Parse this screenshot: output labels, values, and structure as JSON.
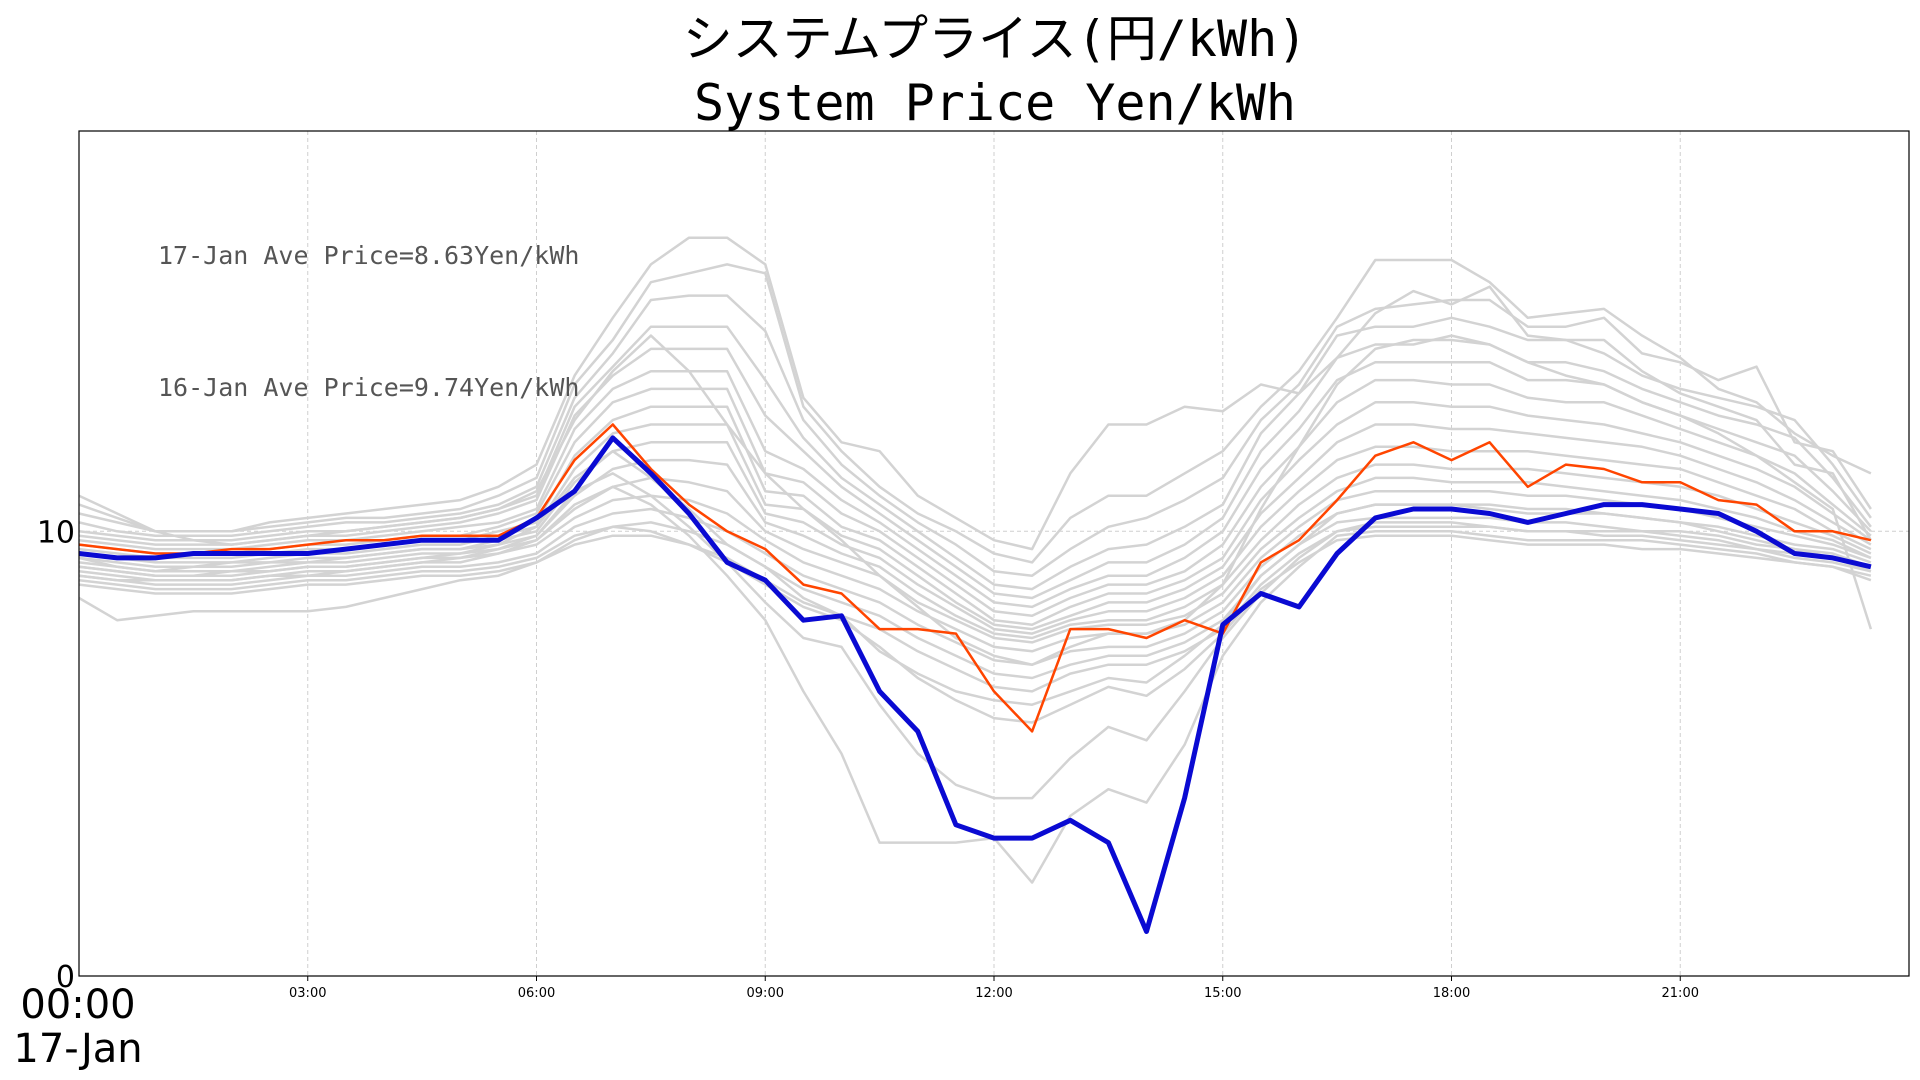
{
  "chart_data": {
    "type": "line",
    "title": "システムプライス(円/kWh)",
    "subtitle": "System Price Yen/kWh",
    "x": [
      "00:00",
      "00:30",
      "01:00",
      "01:30",
      "02:00",
      "02:30",
      "03:00",
      "03:30",
      "04:00",
      "04:30",
      "05:00",
      "05:30",
      "06:00",
      "06:30",
      "07:00",
      "07:30",
      "08:00",
      "08:30",
      "09:00",
      "09:30",
      "10:00",
      "10:30",
      "11:00",
      "11:30",
      "12:00",
      "12:30",
      "13:00",
      "13:30",
      "14:00",
      "14:30",
      "15:00",
      "15:30",
      "16:00",
      "16:30",
      "17:00",
      "17:30",
      "18:00",
      "18:30",
      "19:00",
      "19:30",
      "20:00",
      "20:30",
      "21:00",
      "21:30",
      "22:00",
      "22:30",
      "23:00",
      "23:30"
    ],
    "x_tick_labels": [
      "03:00",
      "06:00",
      "09:00",
      "12:00",
      "15:00",
      "18:00",
      "21:00"
    ],
    "x_first_label": "00:00",
    "x_date_label": "17-Jan",
    "y_tick_labels": [
      "0",
      "10"
    ],
    "ylim": [
      0,
      19
    ],
    "grid": true,
    "annotations": [
      "17-Jan Ave Price=8.63Yen/kWh",
      "16-Jan Ave Price=9.74Yen/kWh"
    ],
    "series": [
      {
        "values": [
          9.5,
          9.4,
          9.4,
          9.5,
          9.5,
          9.5,
          9.5,
          9.6,
          9.7,
          9.8,
          9.8,
          9.8,
          10.3,
          10.9,
          12.1,
          11.3,
          10.4,
          9.3,
          8.9,
          8.0,
          8.1,
          6.4,
          5.5,
          3.4,
          3.1,
          3.1,
          3.5,
          3.0,
          1.0,
          4.0,
          7.9,
          8.6,
          8.3,
          9.5,
          10.3,
          10.5,
          10.5,
          10.4,
          10.2,
          10.4,
          10.6,
          10.6,
          10.5,
          10.4,
          10.0,
          9.5,
          9.4,
          9.2
        ],
        "color": "#0a0ad2",
        "width": 5
      },
      {
        "values": [
          9.7,
          9.6,
          9.5,
          9.5,
          9.6,
          9.6,
          9.7,
          9.8,
          9.8,
          9.9,
          9.9,
          9.9,
          10.3,
          11.6,
          12.4,
          11.4,
          10.6,
          10.0,
          9.6,
          8.8,
          8.6,
          7.8,
          7.8,
          7.7,
          6.4,
          5.5,
          7.8,
          7.8,
          7.6,
          8.0,
          7.7,
          9.3,
          9.8,
          10.7,
          11.7,
          12.0,
          11.6,
          12.0,
          11.0,
          11.5,
          11.4,
          11.1,
          11.1,
          10.7,
          10.6,
          10.0,
          10.0,
          9.8
        ],
        "color": "#ff4500",
        "width": 2.5
      }
    ],
    "background_series_color": "#d3d3d3",
    "background_series": [
      [
        10.6,
        10.3,
        10.0,
        10.0,
        10.0,
        10.2,
        10.3,
        10.4,
        10.5,
        10.6,
        10.7,
        11.0,
        11.5,
        13.5,
        14.8,
        16.0,
        16.6,
        16.6,
        16.0,
        13.0,
        12.0,
        11.8,
        10.8,
        10.3,
        9.8,
        9.6,
        11.3,
        12.4,
        12.4,
        12.8,
        12.7,
        13.3,
        13.1,
        13.9,
        14.9,
        15.4,
        15.1,
        15.5,
        14.4,
        14.3,
        14.3,
        13.6,
        13.1,
        12.8,
        12.5,
        11.5,
        11.3,
        9.8
      ],
      [
        10.4,
        10.2,
        10.0,
        10.0,
        10.0,
        10.1,
        10.2,
        10.3,
        10.3,
        10.4,
        10.5,
        10.8,
        11.2,
        13.3,
        14.3,
        15.6,
        15.8,
        16.0,
        15.8,
        12.8,
        11.8,
        11.0,
        10.4,
        10.0,
        9.5,
        9.3,
        10.3,
        10.8,
        10.8,
        11.3,
        11.8,
        12.8,
        13.6,
        14.8,
        16.1,
        16.1,
        16.1,
        15.6,
        14.8,
        14.9,
        15.0,
        14.4,
        13.9,
        13.2,
        12.9,
        12.2,
        11.7,
        11.3
      ],
      [
        10.2,
        10.0,
        9.9,
        9.9,
        9.9,
        10.0,
        10.1,
        10.2,
        10.2,
        10.3,
        10.4,
        10.6,
        11.0,
        13.0,
        14.0,
        15.2,
        15.3,
        15.3,
        14.5,
        12.5,
        11.5,
        10.8,
        10.2,
        9.7,
        9.1,
        9.0,
        9.6,
        10.1,
        10.3,
        10.7,
        11.2,
        12.5,
        13.3,
        14.6,
        15.0,
        15.1,
        15.2,
        15.2,
        14.6,
        14.6,
        14.8,
        14.0,
        13.8,
        13.4,
        13.7,
        12.0,
        11.8,
        10.5
      ],
      [
        10.0,
        9.9,
        9.8,
        9.8,
        9.8,
        9.9,
        10.0,
        10.0,
        10.1,
        10.2,
        10.3,
        10.5,
        10.8,
        12.8,
        13.7,
        14.6,
        14.6,
        14.6,
        13.4,
        12.1,
        11.2,
        10.6,
        10.0,
        9.4,
        8.8,
        8.7,
        9.2,
        9.6,
        9.7,
        10.1,
        10.6,
        12.2,
        13.1,
        14.4,
        14.6,
        14.6,
        14.8,
        14.6,
        14.3,
        14.3,
        14.0,
        13.5,
        13.2,
        13.0,
        12.8,
        12.5,
        11.5,
        10.3
      ],
      [
        9.9,
        9.8,
        9.7,
        9.7,
        9.7,
        9.8,
        9.9,
        9.9,
        10.0,
        10.1,
        10.2,
        10.4,
        10.7,
        12.6,
        13.5,
        14.1,
        14.1,
        14.1,
        12.6,
        11.8,
        11.0,
        10.4,
        9.8,
        9.2,
        8.6,
        8.5,
        8.9,
        9.3,
        9.3,
        9.7,
        10.3,
        11.8,
        12.7,
        13.9,
        14.2,
        14.2,
        14.4,
        14.2,
        13.8,
        13.8,
        13.6,
        13.2,
        12.9,
        12.6,
        12.4,
        12.1,
        11.2,
        10.1
      ],
      [
        9.8,
        9.7,
        9.6,
        9.6,
        9.6,
        9.7,
        9.8,
        9.8,
        9.9,
        10.0,
        10.1,
        10.2,
        10.5,
        12.3,
        13.2,
        13.6,
        13.6,
        13.6,
        11.8,
        11.4,
        10.7,
        10.2,
        9.6,
        9.0,
        8.4,
        8.3,
        8.7,
        9.0,
        9.0,
        9.4,
        10.0,
        11.4,
        12.3,
        13.4,
        13.8,
        13.8,
        13.8,
        13.8,
        13.4,
        13.4,
        13.3,
        12.9,
        12.6,
        12.3,
        12.0,
        11.7,
        10.9,
        10.0
      ],
      [
        9.7,
        9.6,
        9.5,
        9.5,
        9.5,
        9.6,
        9.7,
        9.7,
        9.8,
        9.9,
        9.9,
        10.1,
        10.4,
        12.0,
        12.9,
        13.2,
        13.2,
        13.2,
        11.3,
        11.1,
        10.4,
        10.0,
        9.4,
        8.8,
        8.2,
        8.1,
        8.5,
        8.8,
        8.8,
        9.1,
        9.7,
        11.0,
        11.9,
        12.9,
        13.4,
        13.4,
        13.3,
        13.3,
        13.0,
        12.9,
        12.9,
        12.6,
        12.3,
        12.0,
        11.7,
        11.3,
        10.6,
        9.9
      ],
      [
        9.6,
        9.5,
        9.4,
        9.4,
        9.4,
        9.5,
        9.6,
        9.6,
        9.7,
        9.8,
        9.8,
        10.0,
        10.2,
        11.7,
        12.5,
        12.8,
        12.8,
        12.8,
        10.9,
        10.8,
        10.1,
        9.8,
        9.2,
        8.6,
        8.0,
        7.9,
        8.3,
        8.6,
        8.6,
        8.9,
        9.4,
        10.7,
        11.6,
        12.4,
        12.9,
        12.9,
        12.8,
        12.8,
        12.6,
        12.5,
        12.4,
        12.2,
        12.0,
        11.7,
        11.4,
        11.0,
        10.4,
        9.8
      ],
      [
        9.5,
        9.4,
        9.3,
        9.3,
        9.3,
        9.4,
        9.5,
        9.5,
        9.6,
        9.7,
        9.7,
        9.9,
        10.1,
        11.4,
        12.2,
        12.4,
        12.4,
        12.4,
        10.6,
        10.5,
        9.9,
        9.6,
        9.0,
        8.4,
        7.9,
        7.8,
        8.1,
        8.4,
        8.4,
        8.7,
        9.2,
        10.4,
        11.2,
        12.0,
        12.4,
        12.4,
        12.3,
        12.3,
        12.2,
        12.1,
        12.0,
        11.9,
        11.7,
        11.4,
        11.1,
        10.7,
        10.2,
        9.7
      ],
      [
        9.4,
        9.3,
        9.2,
        9.2,
        9.2,
        9.3,
        9.4,
        9.4,
        9.5,
        9.6,
        9.6,
        9.8,
        10.0,
        11.1,
        11.8,
        12.0,
        12.0,
        12.0,
        10.4,
        10.2,
        9.7,
        9.4,
        8.8,
        8.3,
        7.8,
        7.7,
        8.0,
        8.2,
        8.2,
        8.5,
        9.0,
        10.1,
        10.9,
        11.6,
        11.9,
        11.9,
        11.8,
        11.8,
        11.8,
        11.7,
        11.6,
        11.5,
        11.4,
        11.1,
        10.8,
        10.5,
        10.0,
        9.6
      ],
      [
        9.3,
        9.2,
        9.1,
        9.1,
        9.1,
        9.2,
        9.3,
        9.3,
        9.4,
        9.5,
        9.5,
        9.7,
        9.9,
        10.8,
        11.4,
        11.6,
        11.6,
        11.5,
        10.2,
        9.9,
        9.5,
        9.2,
        8.6,
        8.1,
        7.7,
        7.6,
        7.9,
        8.0,
        8.0,
        8.3,
        8.8,
        9.8,
        10.6,
        11.2,
        11.5,
        11.5,
        11.4,
        11.4,
        11.4,
        11.3,
        11.2,
        11.1,
        11.0,
        10.8,
        10.5,
        10.2,
        9.9,
        9.5
      ],
      [
        9.2,
        9.1,
        9.0,
        9.0,
        9.0,
        9.1,
        9.2,
        9.2,
        9.3,
        9.4,
        9.4,
        9.6,
        9.8,
        10.5,
        11.0,
        11.2,
        11.1,
        10.9,
        10.0,
        9.6,
        9.3,
        9.0,
        8.4,
        8.0,
        7.6,
        7.5,
        7.8,
        7.9,
        7.9,
        8.1,
        8.6,
        9.6,
        10.3,
        10.9,
        11.2,
        11.2,
        11.1,
        11.1,
        11.1,
        11.0,
        10.9,
        10.8,
        10.7,
        10.5,
        10.3,
        10.0,
        9.8,
        9.4
      ],
      [
        9.1,
        9.0,
        8.9,
        8.9,
        8.9,
        9.0,
        9.1,
        9.1,
        9.2,
        9.3,
        9.3,
        9.5,
        9.7,
        10.3,
        10.7,
        10.8,
        10.7,
        10.4,
        9.8,
        9.3,
        9.0,
        8.7,
        8.2,
        7.8,
        7.4,
        7.3,
        7.6,
        7.7,
        7.7,
        7.9,
        8.4,
        9.4,
        10.1,
        10.7,
        10.9,
        10.9,
        10.9,
        10.9,
        10.8,
        10.8,
        10.7,
        10.6,
        10.5,
        10.3,
        10.1,
        9.9,
        9.7,
        9.4
      ],
      [
        9.0,
        8.9,
        8.8,
        8.8,
        8.8,
        8.9,
        9.0,
        9.0,
        9.1,
        9.2,
        9.2,
        9.3,
        9.5,
        10.1,
        10.4,
        10.5,
        10.3,
        10.0,
        9.5,
        9.0,
        8.7,
        8.4,
        7.9,
        7.5,
        7.1,
        7.0,
        7.3,
        7.4,
        7.4,
        7.7,
        8.2,
        9.2,
        9.9,
        10.4,
        10.6,
        10.6,
        10.6,
        10.6,
        10.5,
        10.5,
        10.4,
        10.3,
        10.2,
        10.1,
        9.9,
        9.7,
        9.6,
        9.3
      ],
      [
        8.9,
        8.8,
        8.7,
        8.7,
        8.7,
        8.8,
        8.9,
        8.9,
        9.0,
        9.1,
        9.1,
        9.2,
        9.4,
        9.9,
        10.1,
        10.2,
        10.0,
        9.7,
        9.2,
        8.7,
        8.4,
        8.1,
        7.6,
        7.2,
        6.8,
        6.7,
        7.0,
        7.2,
        7.2,
        7.5,
        8.0,
        9.0,
        9.7,
        10.2,
        10.3,
        10.3,
        10.3,
        10.3,
        10.2,
        10.2,
        10.1,
        10.0,
        10.0,
        9.9,
        9.7,
        9.6,
        9.5,
        9.2
      ],
      [
        8.8,
        8.7,
        8.6,
        8.6,
        8.6,
        8.7,
        8.8,
        8.8,
        8.9,
        9.0,
        9.0,
        9.1,
        9.3,
        9.7,
        9.9,
        9.9,
        9.7,
        9.4,
        8.9,
        8.4,
        8.1,
        7.8,
        7.3,
        6.9,
        6.5,
        6.4,
        6.8,
        7.0,
        7.0,
        7.3,
        7.8,
        8.8,
        9.5,
        10.0,
        10.1,
        10.1,
        10.1,
        10.1,
        10.0,
        10.0,
        9.9,
        9.9,
        9.8,
        9.7,
        9.6,
        9.5,
        9.4,
        9.1
      ],
      [
        9.4,
        9.2,
        9.1,
        9.2,
        9.3,
        9.3,
        9.3,
        9.4,
        9.5,
        9.6,
        9.6,
        9.7,
        10.1,
        11.2,
        11.8,
        11.2,
        10.5,
        9.7,
        9.2,
        8.5,
        8.1,
        7.3,
        6.8,
        6.4,
        6.2,
        6.1,
        6.4,
        6.7,
        6.6,
        7.2,
        7.9,
        9.0,
        9.7,
        10.4,
        10.6,
        10.6,
        10.6,
        10.5,
        10.4,
        10.4,
        10.4,
        10.3,
        10.2,
        10.0,
        9.8,
        9.6,
        9.4,
        9.2
      ],
      [
        9.2,
        9.1,
        9.0,
        9.0,
        9.1,
        9.1,
        9.2,
        9.2,
        9.3,
        9.4,
        9.5,
        9.6,
        9.9,
        10.9,
        11.3,
        10.8,
        10.1,
        9.3,
        8.4,
        7.6,
        7.4,
        6.1,
        5.0,
        4.3,
        4.0,
        4.0,
        4.9,
        5.6,
        5.3,
        6.4,
        7.6,
        8.6,
        9.4,
        10.0,
        10.2,
        10.2,
        10.2,
        10.1,
        10.0,
        10.0,
        10.0,
        10.0,
        9.9,
        9.8,
        9.6,
        9.4,
        9.3,
        9.1
      ],
      [
        9.0,
        8.9,
        8.9,
        8.9,
        8.9,
        9.0,
        9.0,
        9.1,
        9.2,
        9.3,
        9.4,
        9.5,
        9.8,
        10.6,
        11.0,
        10.6,
        9.9,
        9.0,
        8.0,
        6.4,
        5.0,
        3.0,
        3.0,
        3.0,
        3.1,
        2.1,
        3.6,
        4.2,
        3.9,
        5.2,
        7.2,
        8.4,
        9.2,
        9.9,
        10.0,
        10.0,
        10.0,
        9.9,
        9.8,
        9.8,
        9.8,
        9.8,
        9.7,
        9.6,
        9.5,
        9.3,
        9.2,
        8.9
      ],
      [
        8.5,
        8.0,
        8.1,
        8.2,
        8.2,
        8.2,
        8.2,
        8.3,
        8.5,
        8.7,
        8.9,
        9.0,
        9.3,
        9.8,
        10.1,
        10.0,
        9.7,
        9.3,
        8.8,
        8.3,
        8.0,
        7.4,
        6.7,
        6.2,
        5.8,
        5.7,
        6.1,
        6.5,
        6.3,
        6.9,
        7.7,
        8.7,
        9.3,
        9.8,
        9.9,
        9.9,
        9.9,
        9.8,
        9.7,
        9.7,
        9.7,
        9.6,
        9.6,
        9.5,
        9.4,
        9.3,
        9.2,
        9.0
      ],
      [
        10.8,
        10.4,
        10.0,
        9.8,
        9.7,
        9.8,
        9.9,
        10.0,
        10.1,
        10.2,
        10.3,
        10.5,
        10.9,
        12.5,
        13.6,
        14.4,
        13.6,
        12.4,
        11.3,
        10.5,
        9.8,
        9.0,
        8.3,
        7.6,
        7.2,
        7.0,
        7.4,
        7.7,
        7.7,
        8.0,
        8.8,
        10.5,
        11.9,
        13.3,
        14.1,
        14.3,
        14.3,
        14.2,
        13.8,
        13.5,
        13.3,
        12.9,
        12.6,
        12.2,
        11.7,
        11.1,
        10.5,
        7.8
      ]
    ]
  }
}
